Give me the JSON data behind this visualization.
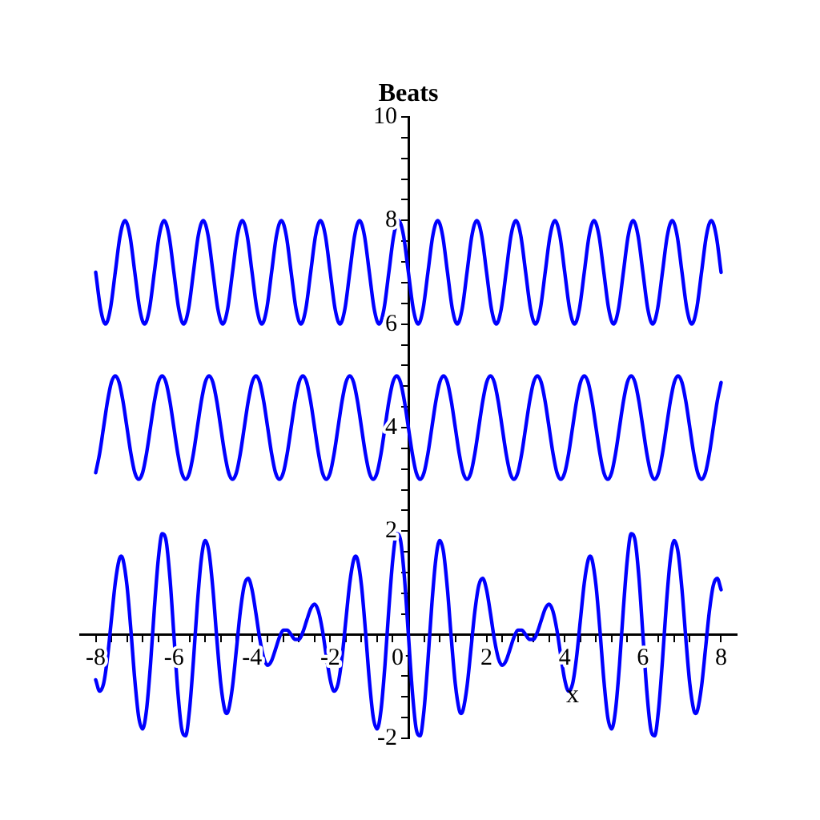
{
  "chart_data": {
    "type": "line",
    "ylabel": "Beats",
    "xlabel": "x",
    "x": [
      -8,
      -7.9,
      -7.8,
      -7.7,
      -7.6,
      -7.5,
      -7.4,
      -7.3,
      -7.2,
      -7.1,
      -7,
      -6.9,
      -6.8,
      -6.7,
      -6.6,
      -6.5,
      -6.4,
      -6.3,
      -6.2,
      -6.1,
      -6,
      -5.9,
      -5.8,
      -5.7,
      -5.6,
      -5.5,
      -5.4,
      -5.3,
      -5.2,
      -5.1,
      -5,
      -4.9,
      -4.8,
      -4.7,
      -4.6,
      -4.5,
      -4.4,
      -4.3,
      -4.2,
      -4.1,
      -4,
      -3.9,
      -3.8,
      -3.7,
      -3.6,
      -3.5,
      -3.4,
      -3.3,
      -3.2,
      -3.1,
      -3,
      -2.9,
      -2.8,
      -2.7,
      -2.6,
      -2.5,
      -2.4,
      -2.3,
      -2.2,
      -2.1,
      -2,
      -1.9,
      -1.8,
      -1.7,
      -1.6,
      -1.5,
      -1.4,
      -1.3,
      -1.2,
      -1.1,
      -1,
      -0.9,
      -0.8,
      -0.7,
      -0.6,
      -0.5,
      -0.4,
      -0.3,
      -0.2,
      -0.1,
      0,
      0.1,
      0.2,
      0.3,
      0.4,
      0.5,
      0.6,
      0.7,
      0.8,
      0.9,
      1,
      1.1,
      1.2,
      1.3,
      1.4,
      1.5,
      1.6,
      1.7,
      1.8,
      1.9,
      2,
      2.1,
      2.2,
      2.3,
      2.4,
      2.5,
      2.6,
      2.7,
      2.8,
      2.9,
      3,
      3.1,
      3.2,
      3.3,
      3.4,
      3.5,
      3.6,
      3.7,
      3.8,
      3.9,
      4,
      4.1,
      4.2,
      4.3,
      4.4,
      4.5,
      4.6,
      4.7,
      4.8,
      4.9,
      5,
      5.1,
      5.2,
      5.3,
      5.4,
      5.5,
      5.6,
      5.7,
      5.8,
      5.9,
      6,
      6.1,
      6.2,
      6.3,
      6.4,
      6.5,
      6.6,
      6.7,
      6.8,
      6.9,
      7,
      7.1,
      7.2,
      7.3,
      7.4,
      7.5,
      7.6,
      7.7,
      7.8,
      7.9,
      8
    ],
    "series": [
      {
        "color": "#0000ff",
        "x": [
          -8,
          -7.875,
          -7.75,
          -7.625,
          -7.5,
          -7.375,
          -7.25,
          -7.125,
          -7,
          -6.875,
          -6.75,
          -6.625,
          -6.5,
          -6.375,
          -6.25,
          -6.125,
          -6,
          -5.875,
          -5.75,
          -5.625,
          -5.5,
          -5.375,
          -5.25,
          -5.125,
          -5,
          -4.875,
          -4.75,
          -4.625,
          -4.5,
          -4.375,
          -4.25,
          -4.125,
          -4,
          -3.875,
          -3.75,
          -3.625,
          -3.5,
          -3.375,
          -3.25,
          -3.125,
          -3,
          -2.875,
          -2.75,
          -2.625,
          -2.5,
          -2.375,
          -2.25,
          -2.125,
          -2,
          -1.875,
          -1.75,
          -1.625,
          -1.5,
          -1.375,
          -1.25,
          -1.125,
          -1,
          -0.875,
          -0.75,
          -0.625,
          -0.5,
          -0.375,
          -0.25,
          -0.125,
          0,
          0.125,
          0.25,
          0.375,
          0.5,
          0.625,
          0.75,
          0.875,
          1,
          1.125,
          1.25,
          1.375,
          1.5,
          1.625,
          1.75,
          1.875,
          2,
          2.125,
          2.25,
          2.375,
          2.5,
          2.625,
          2.75,
          2.875,
          3,
          3.125,
          3.25,
          3.375,
          3.5,
          3.625,
          3.75,
          3.875,
          4,
          4.125,
          4.25,
          4.375,
          4.5,
          4.625,
          4.75,
          4.875,
          5,
          5.125,
          5.25,
          5.375,
          5.5,
          5.625,
          5.75,
          5.875,
          6,
          6.125,
          6.25,
          6.375,
          6.5,
          6.625,
          6.75,
          6.875,
          7,
          7.125,
          7.25,
          7.375,
          7.5,
          7.625,
          7.75,
          7.875,
          8
        ],
        "values": [
          7,
          6.29,
          6,
          6.29,
          7,
          7.71,
          8,
          7.71,
          7,
          6.29,
          6,
          6.29,
          7,
          7.71,
          8,
          7.71,
          7,
          6.29,
          6,
          6.29,
          7,
          7.71,
          8,
          7.71,
          7,
          6.29,
          6,
          6.29,
          7,
          7.71,
          8,
          7.71,
          7,
          6.29,
          6,
          6.29,
          7,
          7.71,
          8,
          7.71,
          7,
          6.29,
          6,
          6.29,
          7,
          7.71,
          8,
          7.71,
          7,
          6.29,
          6,
          6.29,
          7,
          7.71,
          8,
          7.71,
          7,
          6.29,
          6,
          6.29,
          7,
          7.71,
          8,
          7.71,
          7,
          6.29,
          6,
          6.29,
          7,
          7.71,
          8,
          7.71,
          7,
          6.29,
          6,
          6.29,
          7,
          7.71,
          8,
          7.71,
          7,
          6.29,
          6,
          6.29,
          7,
          7.71,
          8,
          7.71,
          7,
          6.29,
          6,
          6.29,
          7,
          7.71,
          8,
          7.71,
          7,
          6.29,
          6,
          6.29,
          7,
          7.71,
          8,
          7.71,
          7,
          6.29,
          6,
          6.29,
          7,
          7.71,
          8,
          7.71,
          7,
          6.29,
          6,
          6.29,
          7,
          7.71,
          8,
          7.71,
          7,
          6.29,
          6,
          6.29,
          7,
          7.71,
          8,
          7.71,
          7
        ]
      },
      {
        "color": "#0000ff",
        "values": [
          3.13,
          3.5,
          4,
          4.5,
          4.87,
          5,
          4.87,
          4.5,
          4,
          3.5,
          3.13,
          3,
          3.13,
          3.5,
          4,
          4.5,
          4.87,
          5,
          4.87,
          4.5,
          4,
          3.5,
          3.13,
          3,
          3.13,
          3.5,
          4,
          4.5,
          4.87,
          5,
          4.87,
          4.5,
          4,
          3.5,
          3.13,
          3,
          3.13,
          3.5,
          4,
          4.5,
          4.87,
          5,
          4.87,
          4.5,
          4,
          3.5,
          3.13,
          3,
          3.13,
          3.5,
          4,
          4.5,
          4.87,
          5,
          4.87,
          4.5,
          4,
          3.5,
          3.13,
          3,
          3.13,
          3.5,
          4,
          4.5,
          4.87,
          5,
          4.87,
          4.5,
          4,
          3.5,
          3.13,
          3,
          3.13,
          3.5,
          4,
          4.5,
          4.87,
          5,
          4.87,
          4.5,
          4,
          3.5,
          3.13,
          3,
          3.13,
          3.5,
          4,
          4.5,
          4.87,
          5,
          4.87,
          4.5,
          4,
          3.5,
          3.13,
          3,
          3.13,
          3.5,
          4,
          4.5,
          4.87,
          5,
          4.87,
          4.5,
          4,
          3.5,
          3.13,
          3,
          3.13,
          3.5,
          4,
          4.5,
          4.87,
          5,
          4.87,
          4.5,
          4,
          3.5,
          3.13,
          3,
          3.13,
          3.5,
          4,
          4.5,
          4.87,
          5,
          4.87,
          4.5,
          4,
          3.5,
          3.13,
          3,
          3.13,
          3.5,
          4,
          4.5,
          4.87,
          5,
          4.87,
          4.5,
          4,
          3.5,
          3.13,
          3,
          3.13,
          3.5,
          4,
          4.5,
          4.87,
          5,
          4.87,
          4.5,
          4,
          3.5,
          3.13,
          3,
          3.13,
          3.5,
          4,
          4.5,
          4.87
        ]
      },
      {
        "color": "#0000ff",
        "x": [
          -8,
          -7.9,
          -7.8,
          -7.7,
          -7.6,
          -7.5,
          -7.4,
          -7.35,
          -7.3,
          -7.2,
          -7.1,
          -7,
          -6.9,
          -6.8,
          -6.7,
          -6.6,
          -6.5,
          -6.4,
          -6.3,
          -6.2,
          -6.1,
          -6,
          -5.9,
          -5.8,
          -5.7,
          -5.6,
          -5.5,
          -5.4,
          -5.3,
          -5.2,
          -5.1,
          -5,
          -4.9,
          -4.8,
          -4.7,
          -4.65,
          -4.6,
          -4.5,
          -4.4,
          -4.3,
          -4.2,
          -4.1,
          -4,
          -3.9,
          -3.8,
          -3.7,
          -3.6,
          -3.5,
          -3.4,
          -3.3,
          -3.2,
          -3.1,
          -3,
          -2.9,
          -2.8,
          -2.7,
          -2.6,
          -2.5,
          -2.4,
          -2.3,
          -2.2,
          -2.1,
          -2,
          -1.9,
          -1.8,
          -1.7,
          -1.6,
          -1.5,
          -1.4,
          -1.35,
          -1.3,
          -1.2,
          -1.1,
          -1,
          -0.9,
          -0.8,
          -0.7,
          -0.6,
          -0.5,
          -0.4,
          -0.3,
          -0.2,
          -0.1,
          0,
          0.1,
          0.2,
          0.3,
          0.4,
          0.5,
          0.6,
          0.7,
          0.8,
          0.9,
          1,
          1.1,
          1.2,
          1.3,
          1.35,
          1.4,
          1.5,
          1.6,
          1.7,
          1.8,
          1.9,
          2,
          2.1,
          2.2,
          2.3,
          2.4,
          2.5,
          2.6,
          2.7,
          2.8,
          2.9,
          3,
          3.1,
          3.2,
          3.3,
          3.4,
          3.5,
          3.6,
          3.7,
          3.8,
          3.9,
          4,
          4.1,
          4.2,
          4.3,
          4.4,
          4.5,
          4.6,
          4.65,
          4.7,
          4.8,
          4.9,
          5,
          5.1,
          5.2,
          5.3,
          5.4,
          5.5,
          5.6,
          5.7,
          5.8,
          5.9,
          6,
          6.1,
          6.2,
          6.3,
          6.4,
          6.5,
          6.6,
          6.7,
          6.8,
          6.9,
          7,
          7.1,
          7.2,
          7.3,
          7.35,
          7.4,
          7.5,
          7.6,
          7.7,
          7.8,
          7.9,
          8
        ],
        "values": [
          -0.87,
          -1.09,
          -0.95,
          -0.45,
          0.28,
          1,
          1.45,
          1.52,
          1.45,
          0.95,
          0.09,
          -0.87,
          -1.59,
          -1.82,
          -1.45,
          -0.59,
          0.5,
          1.45,
          1.95,
          1.82,
          1.09,
          0,
          -1.09,
          -1.82,
          -1.95,
          -1.45,
          -0.5,
          0.59,
          1.45,
          1.82,
          1.59,
          0.87,
          -0.09,
          -0.95,
          -1.45,
          -1.52,
          -1.45,
          -1,
          -0.28,
          0.45,
          0.95,
          1.09,
          0.87,
          0.41,
          -0.09,
          -0.45,
          -0.59,
          -0.5,
          -0.28,
          -0.05,
          0.09,
          0.09,
          0,
          -0.09,
          -0.09,
          0.05,
          0.28,
          0.5,
          0.59,
          0.45,
          0.09,
          -0.41,
          -0.87,
          -1.09,
          -0.95,
          -0.45,
          0.28,
          1,
          1.45,
          1.52,
          1.45,
          0.95,
          0.09,
          -0.87,
          -1.59,
          -1.82,
          -1.45,
          -0.59,
          0.5,
          1.45,
          1.95,
          1.82,
          1.09,
          0,
          -1.09,
          -1.82,
          -1.95,
          -1.45,
          -0.5,
          0.59,
          1.45,
          1.82,
          1.59,
          0.87,
          -0.09,
          -0.95,
          -1.45,
          -1.52,
          -1.45,
          -1,
          -0.28,
          0.45,
          0.95,
          1.09,
          0.87,
          0.41,
          -0.09,
          -0.45,
          -0.59,
          -0.5,
          -0.28,
          -0.05,
          0.09,
          0.09,
          0,
          -0.09,
          -0.09,
          0.05,
          0.28,
          0.5,
          0.59,
          0.45,
          0.09,
          -0.41,
          -0.87,
          -1.09,
          -0.95,
          -0.45,
          0.28,
          1,
          1.45,
          1.52,
          1.45,
          0.95,
          0.09,
          -0.87,
          -1.59,
          -1.82,
          -1.45,
          -0.59,
          0.5,
          1.45,
          1.95,
          1.82,
          1.09,
          0,
          -1.09,
          -1.82,
          -1.95,
          -1.45,
          -0.5,
          0.59,
          1.45,
          1.82,
          1.59,
          0.87,
          -0.09,
          -0.95,
          -1.45,
          -1.52,
          -1.45,
          -1,
          -0.28,
          0.45,
          0.95,
          1.09,
          0.87
        ]
      }
    ],
    "xlim": [
      -8.4,
      8.4
    ],
    "ylim": [
      -2,
      10
    ],
    "xticks": [
      -8,
      {
        "value": -7.6,
        "label": null
      },
      {
        "value": -7.2,
        "label": null
      },
      {
        "value": -6.8,
        "label": null
      },
      {
        "value": -6.4,
        "label": null
      },
      -6,
      {
        "value": -5.6,
        "label": null
      },
      {
        "value": -5.2,
        "label": null
      },
      {
        "value": -4.8,
        "label": null
      },
      {
        "value": -4.4,
        "label": null
      },
      -4,
      {
        "value": -3.6,
        "label": null
      },
      {
        "value": -3.2,
        "label": null
      },
      {
        "value": -2.8,
        "label": null
      },
      {
        "value": -2.4,
        "label": null
      },
      -2,
      {
        "value": -1.6,
        "label": null
      },
      {
        "value": -1.2,
        "label": null
      },
      {
        "value": -0.8,
        "label": null
      },
      {
        "value": -0.4,
        "label": null
      },
      0,
      {
        "value": 0.4,
        "label": null
      },
      {
        "value": 0.8,
        "label": null
      },
      {
        "value": 1.2,
        "label": null
      },
      {
        "value": 1.6,
        "label": null
      },
      2,
      {
        "value": 2.4,
        "label": null
      },
      {
        "value": 2.8,
        "label": null
      },
      {
        "value": 3.2,
        "label": null
      },
      {
        "value": 3.6,
        "label": null
      },
      4,
      {
        "value": 4.4,
        "label": null
      },
      {
        "value": 4.8,
        "label": null
      },
      {
        "value": 5.2,
        "label": null
      },
      {
        "value": 5.6,
        "label": null
      },
      6,
      {
        "value": 6.4,
        "label": null
      },
      {
        "value": 6.8,
        "label": null
      },
      {
        "value": 7.2,
        "label": null
      },
      {
        "value": 7.6,
        "label": null
      },
      8
    ],
    "yticks": [
      -2,
      {
        "value": -1.6,
        "label": null
      },
      {
        "value": -1.2,
        "label": null
      },
      {
        "value": -0.8,
        "label": null
      },
      {
        "value": -0.4,
        "label": null
      },
      {
        "value": 0,
        "label": null
      },
      {
        "value": 0.4,
        "label": null
      },
      {
        "value": 0.8,
        "label": null
      },
      {
        "value": 1.2,
        "label": null
      },
      {
        "value": 1.6,
        "label": null
      },
      2,
      {
        "value": 2.4,
        "label": null
      },
      {
        "value": 2.8,
        "label": null
      },
      {
        "value": 3.2,
        "label": null
      },
      {
        "value": 3.6,
        "label": null
      },
      4,
      {
        "value": 4.4,
        "label": null
      },
      {
        "value": 4.8,
        "label": null
      },
      {
        "value": 5.2,
        "label": null
      },
      {
        "value": 5.6,
        "label": null
      },
      6,
      {
        "value": 6.4,
        "label": null
      },
      {
        "value": 6.8,
        "label": null
      },
      {
        "value": 7.2,
        "label": null
      },
      {
        "value": 7.6,
        "label": null
      },
      8,
      {
        "value": 8.4,
        "label": null
      },
      {
        "value": 8.8,
        "label": null
      },
      {
        "value": 9.2,
        "label": null
      },
      {
        "value": 9.6,
        "label": null
      },
      10
    ],
    "legend": false,
    "grid": false,
    "marker": "none"
  }
}
